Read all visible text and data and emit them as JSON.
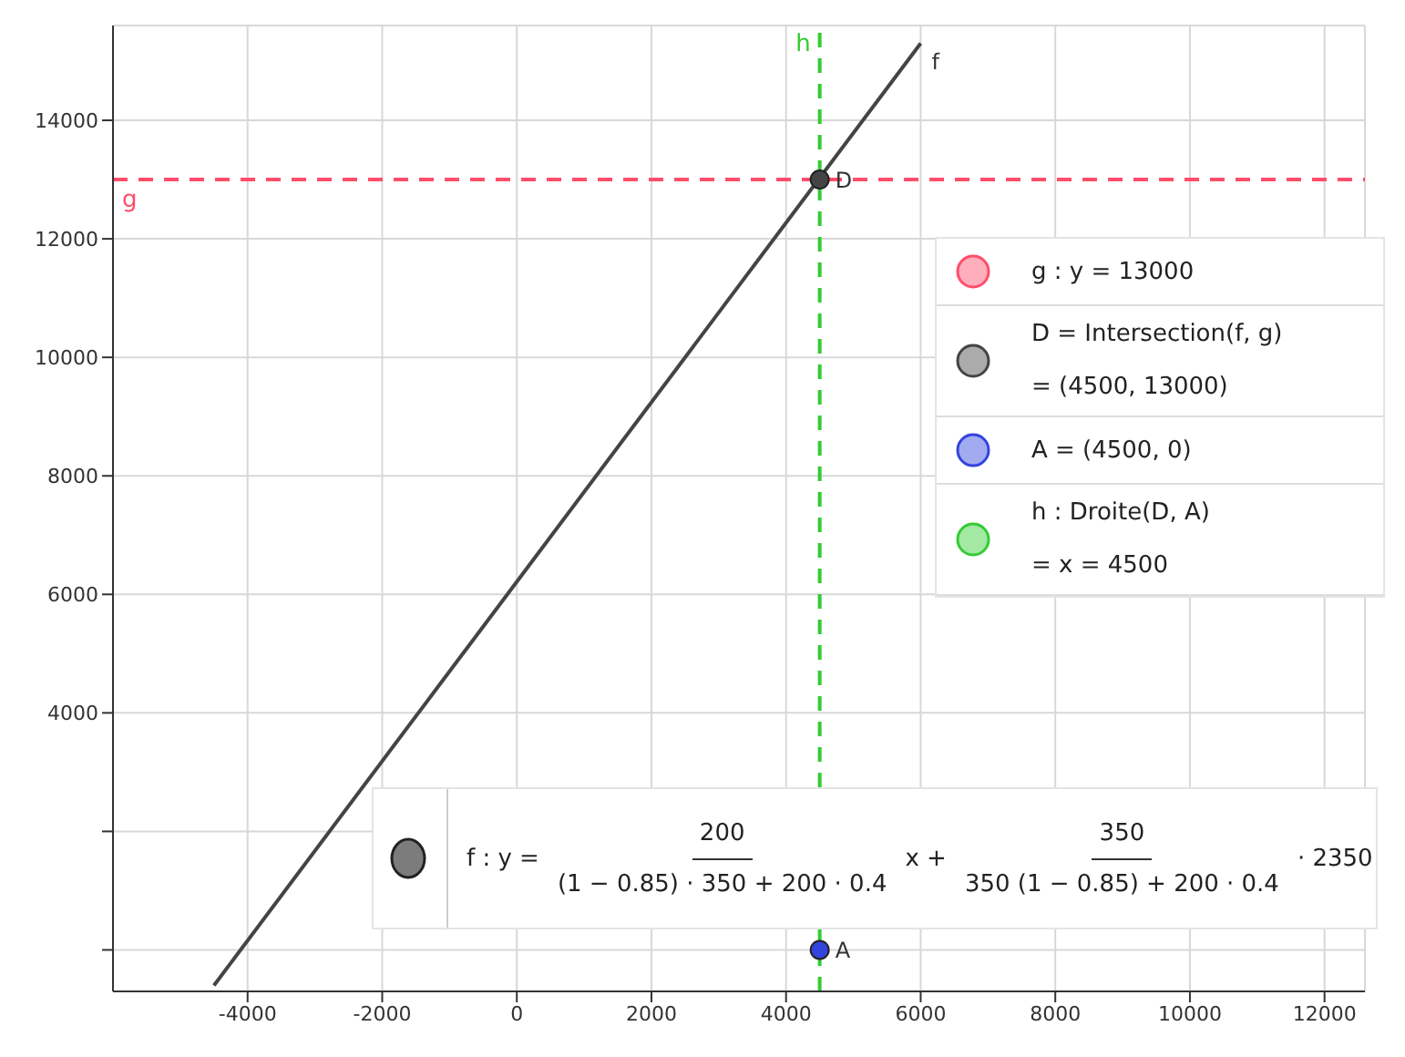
{
  "chart_data": {
    "type": "line",
    "series": [
      {
        "name": "f",
        "color": "#444444",
        "line_style": "solid",
        "x": [
          -4500,
          6000
        ],
        "values": [
          -600,
          15300
        ]
      },
      {
        "name": "D",
        "type": "scatter",
        "color": "#444444",
        "marker": "circle",
        "x": [
          4500
        ],
        "values": [
          13000
        ]
      },
      {
        "name": "A",
        "type": "scatter",
        "color": "#3344dd",
        "marker": "circle",
        "x": [
          4500
        ],
        "values": [
          0
        ]
      }
    ],
    "xlim": [
      -6000,
      12600
    ],
    "ylim": [
      -700,
      15600
    ],
    "xticks": [
      -4000,
      -2000,
      0,
      2000,
      4000,
      6000,
      8000,
      10000,
      12000
    ],
    "yticks": [
      {
        "value": 0,
        "label": null
      },
      {
        "value": 2000,
        "label": null
      },
      4000,
      6000,
      8000,
      10000,
      12000,
      14000
    ],
    "grid": true,
    "ref_lines": [
      {
        "axis": "y",
        "value": 13000,
        "label": "g",
        "color": "#ff4d6a",
        "line_style": "dashed"
      },
      {
        "axis": "x",
        "value": 4500,
        "label": "h",
        "color": "#33cc33",
        "line_style": "dashed"
      }
    ],
    "annotations": [
      "g : y = 13000",
      "D = Intersection(f, g)",
      "= (4500, 13000)",
      "A = (4500, 0)",
      "h : Droite(D, A)",
      "= x = 4500",
      "f : y =",
      "200",
      "(1 − 0.85) · 350 + 200 · 0.4",
      "x +",
      "350",
      "350 (1 − 0.85) + 200 · 0.4",
      "· 2350"
    ]
  }
}
